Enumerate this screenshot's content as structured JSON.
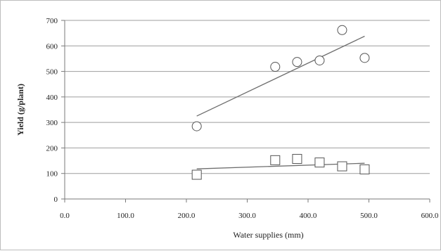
{
  "chart_data": {
    "type": "scatter",
    "title": "",
    "xlabel": "Water supplies (mm)",
    "ylabel": "Yield (g/plant)",
    "xlim": [
      0,
      600
    ],
    "ylim": [
      0,
      700
    ],
    "x_ticks": [
      "0.0",
      "100.0",
      "200.0",
      "300.0",
      "400.0",
      "500.0",
      "600.0"
    ],
    "y_ticks": [
      "0",
      "100",
      "200",
      "300",
      "400",
      "500",
      "600",
      "700"
    ],
    "grid": "horizontal",
    "legend": "none",
    "series": [
      {
        "marker": "circle",
        "color": "#555555",
        "points": [
          {
            "x": 217,
            "y": 285
          },
          {
            "x": 346,
            "y": 518
          },
          {
            "x": 382,
            "y": 537
          },
          {
            "x": 419,
            "y": 543
          },
          {
            "x": 456,
            "y": 662
          },
          {
            "x": 493,
            "y": 553
          }
        ],
        "trendline": {
          "x0": 217,
          "y0": 325,
          "x1": 493,
          "y1": 638
        }
      },
      {
        "marker": "square",
        "color": "#555555",
        "points": [
          {
            "x": 217,
            "y": 95
          },
          {
            "x": 346,
            "y": 152
          },
          {
            "x": 382,
            "y": 157
          },
          {
            "x": 419,
            "y": 143
          },
          {
            "x": 456,
            "y": 128
          },
          {
            "x": 493,
            "y": 116
          }
        ],
        "trendline": {
          "x0": 217,
          "y0": 118,
          "x1": 493,
          "y1": 140
        }
      }
    ]
  }
}
